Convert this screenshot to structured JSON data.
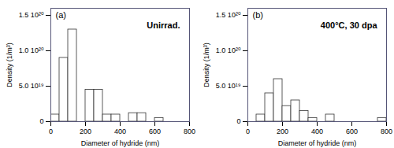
{
  "chart_data": [
    {
      "type": "histogram",
      "title": "(a)",
      "annotation": "Unirrad.",
      "bins": [
        0,
        50,
        100,
        150,
        200,
        250,
        300,
        350,
        400,
        450,
        500,
        550,
        600,
        650,
        700,
        750,
        800
      ],
      "values": [
        1e+19,
        9e+19,
        1.3e+20,
        0,
        4.5e+19,
        4.5e+19,
        1e+19,
        1e+19,
        0,
        1.2e+19,
        1.2e+19,
        0,
        5e+18,
        0,
        0,
        0
      ],
      "x_label": "Diameter of hydride (nm)",
      "y_label": "Density (1/m³)",
      "xlim": [
        0,
        800
      ],
      "xticks": [
        0,
        200,
        400,
        600,
        800
      ],
      "ylim": [
        0,
        1.6e+20
      ],
      "yticks": [
        0,
        {
          "value": 5e+19,
          "label": "5.0 10¹⁹"
        },
        {
          "value": 1e+20,
          "label": "1.0 10²⁰"
        },
        {
          "value": 1.5e+20,
          "label": "1.5 10²⁰"
        }
      ],
      "color": "white",
      "grid": false
    },
    {
      "type": "histogram",
      "title": "(b)",
      "annotation": "400°C, 30 dpa",
      "bins": [
        0,
        50,
        100,
        150,
        200,
        250,
        300,
        350,
        400,
        450,
        500,
        550,
        600,
        650,
        700,
        750,
        800
      ],
      "values": [
        0,
        1e+19,
        4e+19,
        6e+19,
        2.2e+19,
        3e+19,
        1.5e+19,
        5e+18,
        0,
        1e+19,
        0,
        0,
        0,
        0,
        0,
        5e+18
      ],
      "x_label": "Diameter of hydride (nm)",
      "y_label": "Density (1/m³)",
      "xlim": [
        0,
        800
      ],
      "xticks": [
        0,
        200,
        400,
        600,
        800
      ],
      "ylim": [
        0,
        1.6e+20
      ],
      "yticks": [
        0,
        {
          "value": 5e+19,
          "label": "5.0 10¹⁹"
        },
        {
          "value": 1e+20,
          "label": "1.0 10²⁰"
        },
        {
          "value": 1.5e+20,
          "label": "1.5 10²⁰"
        }
      ],
      "color": "white",
      "grid": false
    }
  ]
}
